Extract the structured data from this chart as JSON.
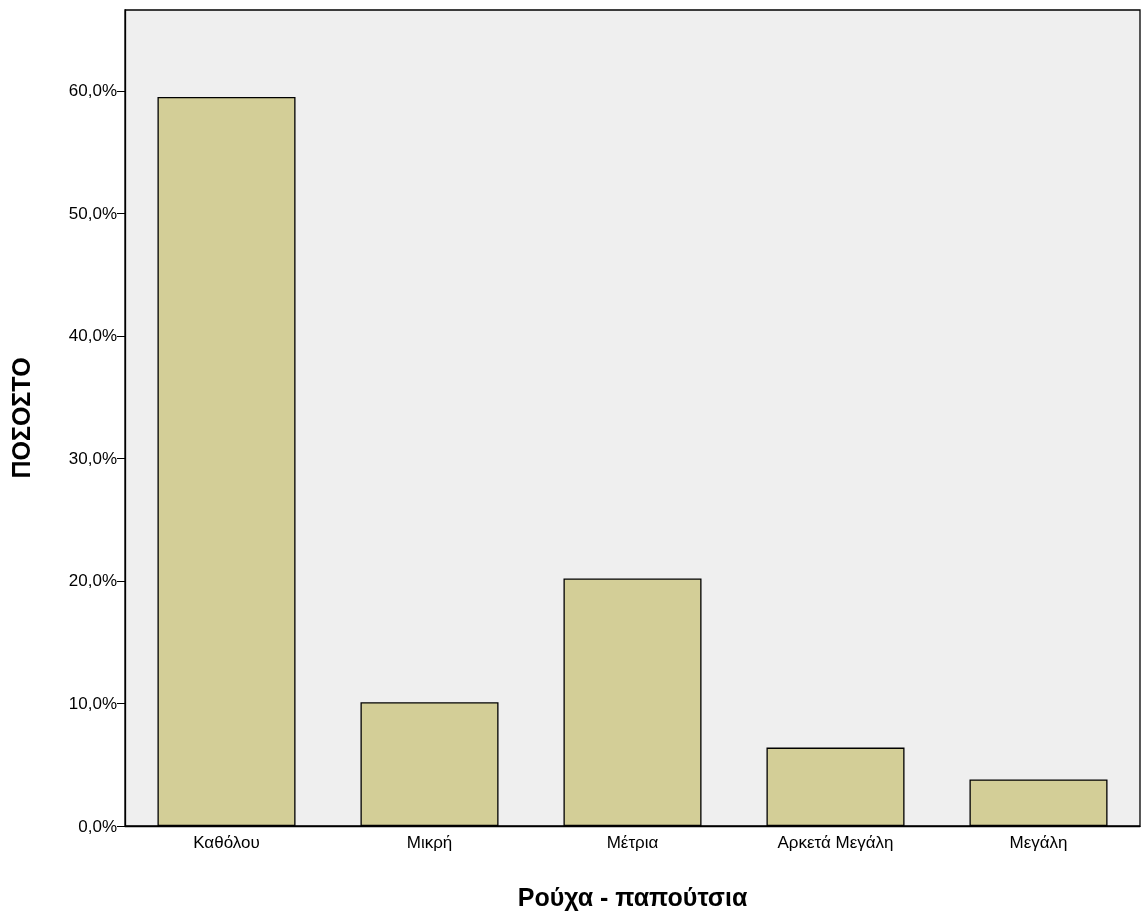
{
  "chart_data": {
    "type": "bar",
    "xlabel": "Ρούχα - παπούτσια",
    "ylabel": "ΠΟΣΟΣΤΟ",
    "categories": [
      "Καθόλου",
      "Μικρή",
      "Μέτρια",
      "Αρκετά Μεγάλη",
      "Μεγάλη"
    ],
    "values": [
      59.5,
      10.1,
      20.2,
      6.4,
      3.8
    ],
    "color": "#d3ce97",
    "ylim": [
      0,
      66.6
    ],
    "yticks": [
      {
        "value": 0,
        "label": "0,0%"
      },
      {
        "value": 10,
        "label": "10,0%"
      },
      {
        "value": 20,
        "label": "20,0%"
      },
      {
        "value": 30,
        "label": "30,0%"
      },
      {
        "value": 40,
        "label": "40,0%"
      },
      {
        "value": 50,
        "label": "50,0%"
      },
      {
        "value": 60,
        "label": "60,0%"
      }
    ],
    "grid": false
  }
}
